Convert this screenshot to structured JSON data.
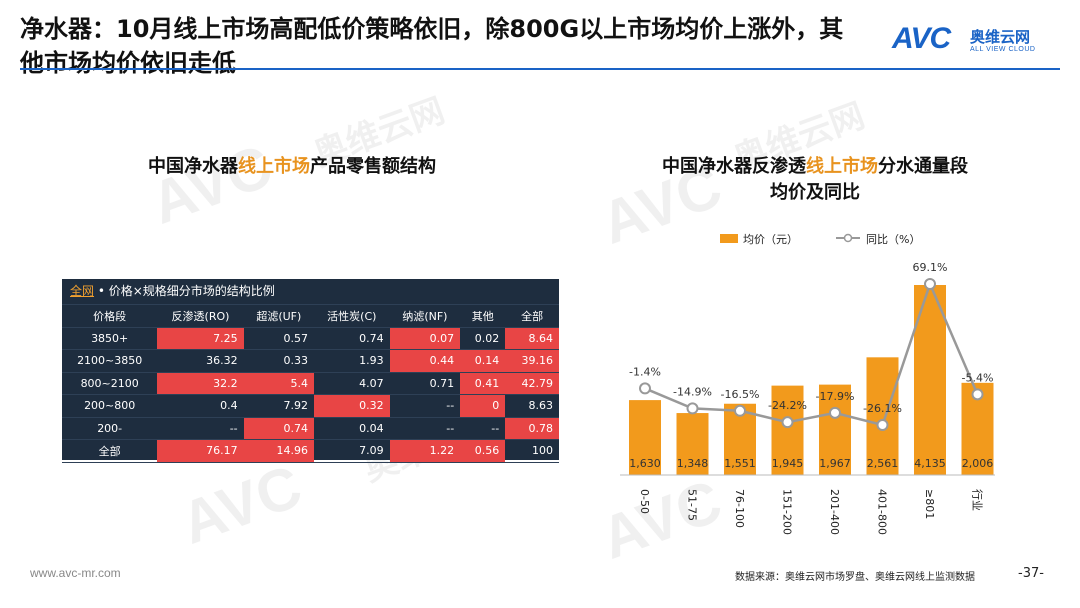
{
  "title": "净水器：10月线上市场高配低价策略依旧，除800G以上市场均价上涨外，其他市场均价依旧走低",
  "logo": {
    "mark": "AVC",
    "cn": "奥维云网",
    "en": "ALL VIEW CLOUD"
  },
  "watermark": {
    "mark": "AVC",
    "cn": "奥维云网",
    "en": "ALL VIEW CLOUD"
  },
  "left_section": {
    "title_pre": "中国净水器",
    "title_hl": "线上市场",
    "title_post": "产品零售额结构"
  },
  "table": {
    "caption_accent": "全网",
    "caption_rest": " • 价格×规格细分市场的结构比例",
    "headers": [
      "价格段",
      "反渗透(RO)",
      "超滤(UF)",
      "活性炭(C)",
      "纳滤(NF)",
      "其他",
      "全部"
    ],
    "rows": [
      {
        "cells": [
          "3850+",
          "7.25",
          "0.57",
          "0.74",
          "0.07",
          "0.02",
          "8.64"
        ],
        "highlight": [
          false,
          true,
          false,
          false,
          true,
          false,
          true
        ]
      },
      {
        "cells": [
          "2100~3850",
          "36.32",
          "0.33",
          "1.93",
          "0.44",
          "0.14",
          "39.16"
        ],
        "highlight": [
          false,
          false,
          false,
          false,
          true,
          true,
          true
        ]
      },
      {
        "cells": [
          "800~2100",
          "32.2",
          "5.4",
          "4.07",
          "0.71",
          "0.41",
          "42.79"
        ],
        "highlight": [
          false,
          true,
          true,
          false,
          false,
          true,
          true
        ]
      },
      {
        "cells": [
          "200~800",
          "0.4",
          "7.92",
          "0.32",
          "--",
          "0",
          "8.63"
        ],
        "highlight": [
          false,
          false,
          false,
          true,
          false,
          true,
          false
        ]
      },
      {
        "cells": [
          "200-",
          "--",
          "0.74",
          "0.04",
          "--",
          "--",
          "0.78"
        ],
        "highlight": [
          false,
          false,
          true,
          false,
          false,
          false,
          true
        ]
      },
      {
        "cells": [
          "全部",
          "76.17",
          "14.96",
          "7.09",
          "1.22",
          "0.56",
          "100"
        ],
        "highlight": [
          false,
          true,
          true,
          false,
          true,
          true,
          false
        ]
      }
    ],
    "highlight_color": "#e84545",
    "bg_color": "#1e2d3f"
  },
  "right_section": {
    "title_pre": "中国净水器反渗透",
    "title_hl": "线上市场",
    "title_post": "分水通量段",
    "title_line2": "均价及同比"
  },
  "chart_data": {
    "type": "bar",
    "categories": [
      "0-50",
      "51-75",
      "76-100",
      "151-200",
      "201-400",
      "401-800",
      "≥801",
      "行业"
    ],
    "series": [
      {
        "name": "均价（元）",
        "type": "bar",
        "values": [
          1630,
          1348,
          1551,
          1945,
          1967,
          2561,
          4135,
          2006
        ],
        "labels": [
          "1,630",
          "1,348",
          "1,551",
          "1,945",
          "1,967",
          "2,561",
          "4,135",
          "2,006"
        ],
        "color": "#f29a1c"
      },
      {
        "name": "同比（%）",
        "type": "line",
        "values": [
          -1.4,
          -14.9,
          -16.5,
          -24.2,
          -17.9,
          -26.1,
          69.1,
          -5.4
        ],
        "labels": [
          "-1.4%",
          "-14.9%",
          "-16.5%",
          "-24.2%",
          "-17.9%",
          "-26.1%",
          "69.1%",
          "-5.4%"
        ],
        "color": "#999999"
      }
    ],
    "legend_position": "top"
  },
  "footer": {
    "url": "www.avc-mr.com",
    "source": "数据来源：奥维云网市场罗盘、奥维云网线上监测数据",
    "page": "-37-"
  }
}
